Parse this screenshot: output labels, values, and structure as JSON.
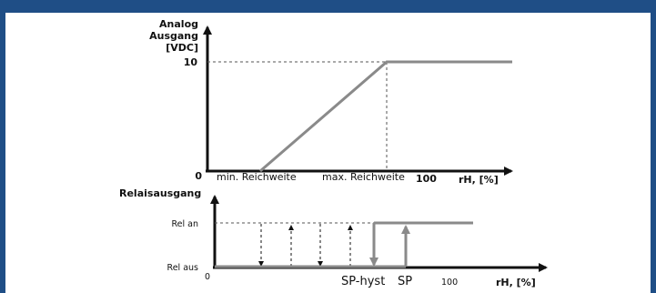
{
  "top_chart": {
    "y_axis_title_lines": [
      "Analog",
      "Ausgang",
      "[VDC]"
    ],
    "y_tick_10": "10",
    "origin_label": "0",
    "x_label_min": "min. Reichweite",
    "x_label_max": "max. Reichweite",
    "x_tick_100": "100",
    "x_axis_title": "rH, [%]"
  },
  "bottom_chart": {
    "title": "Relaisausgang",
    "rel_an": "Rel an",
    "rel_aus": "Rel aus",
    "origin_label": "0",
    "sp_hyst_label": "SP-hyst",
    "sp_label": "SP",
    "x_tick_100": "100",
    "x_axis_title": "rH, [%]"
  },
  "colors": {
    "frame": "#1f4e86",
    "curve": "#8a8a8a",
    "axis": "#111111"
  }
}
